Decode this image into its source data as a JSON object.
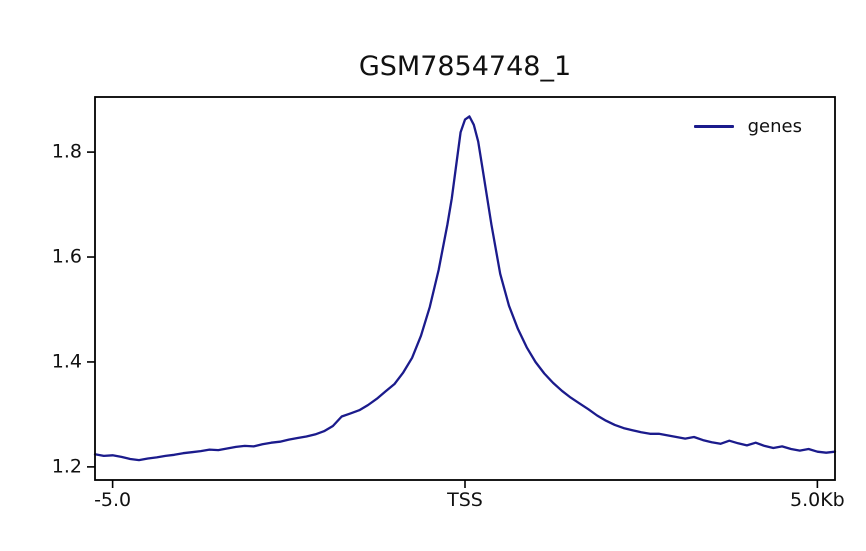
{
  "figure": {
    "background": "#ffffff"
  },
  "chart_data": {
    "type": "line",
    "title": "GSM7854748_1",
    "xlabel": "",
    "ylabel": "",
    "grid": false,
    "xlim": [
      -5.25,
      5.25
    ],
    "ylim": [
      1.175,
      1.905
    ],
    "xticks": [
      {
        "value": -5,
        "label": "-5.0"
      },
      {
        "value": 0,
        "label": "TSS"
      },
      {
        "value": 5,
        "label": "5.0Kb"
      }
    ],
    "yticks": [
      {
        "value": 1.2,
        "label": "1.2"
      },
      {
        "value": 1.4,
        "label": "1.4"
      },
      {
        "value": 1.6,
        "label": "1.6"
      },
      {
        "value": 1.8,
        "label": "1.8"
      }
    ],
    "legend": {
      "position": "upper right",
      "entries": [
        "genes"
      ]
    },
    "series": [
      {
        "name": "genes",
        "color": "#1b1b8c",
        "linewidth": 2.3,
        "x": [
          -5.25,
          -5.125,
          -5.0,
          -4.875,
          -4.75,
          -4.625,
          -4.5,
          -4.375,
          -4.25,
          -4.125,
          -4.0,
          -3.875,
          -3.75,
          -3.625,
          -3.5,
          -3.375,
          -3.25,
          -3.125,
          -3.0,
          -2.875,
          -2.75,
          -2.625,
          -2.5,
          -2.375,
          -2.25,
          -2.125,
          -2.0,
          -1.875,
          -1.75,
          -1.625,
          -1.5,
          -1.375,
          -1.25,
          -1.125,
          -1.0,
          -0.875,
          -0.75,
          -0.625,
          -0.5,
          -0.375,
          -0.25,
          -0.1875,
          -0.125,
          -0.0625,
          0,
          0.0625,
          0.125,
          0.1875,
          0.25,
          0.375,
          0.5,
          0.625,
          0.75,
          0.875,
          1.0,
          1.125,
          1.25,
          1.375,
          1.5,
          1.625,
          1.75,
          1.875,
          2.0,
          2.125,
          2.25,
          2.375,
          2.5,
          2.625,
          2.75,
          2.875,
          3.0,
          3.125,
          3.25,
          3.375,
          3.5,
          3.625,
          3.75,
          3.875,
          4.0,
          4.125,
          4.25,
          4.375,
          4.5,
          4.625,
          4.75,
          4.875,
          5.0,
          5.125,
          5.25
        ],
        "y": [
          1.224,
          1.221,
          1.222,
          1.219,
          1.215,
          1.213,
          1.216,
          1.218,
          1.221,
          1.223,
          1.226,
          1.228,
          1.23,
          1.233,
          1.232,
          1.235,
          1.238,
          1.24,
          1.239,
          1.243,
          1.246,
          1.248,
          1.252,
          1.255,
          1.258,
          1.262,
          1.268,
          1.278,
          1.296,
          1.302,
          1.308,
          1.318,
          1.33,
          1.344,
          1.358,
          1.38,
          1.408,
          1.45,
          1.505,
          1.575,
          1.662,
          1.712,
          1.775,
          1.838,
          1.862,
          1.868,
          1.852,
          1.82,
          1.768,
          1.662,
          1.568,
          1.507,
          1.463,
          1.428,
          1.4,
          1.378,
          1.36,
          1.345,
          1.332,
          1.321,
          1.31,
          1.298,
          1.288,
          1.28,
          1.274,
          1.27,
          1.266,
          1.263,
          1.263,
          1.26,
          1.257,
          1.254,
          1.257,
          1.251,
          1.247,
          1.244,
          1.25,
          1.245,
          1.241,
          1.246,
          1.24,
          1.236,
          1.239,
          1.234,
          1.231,
          1.234,
          1.229,
          1.227,
          1.229
        ]
      }
    ]
  }
}
